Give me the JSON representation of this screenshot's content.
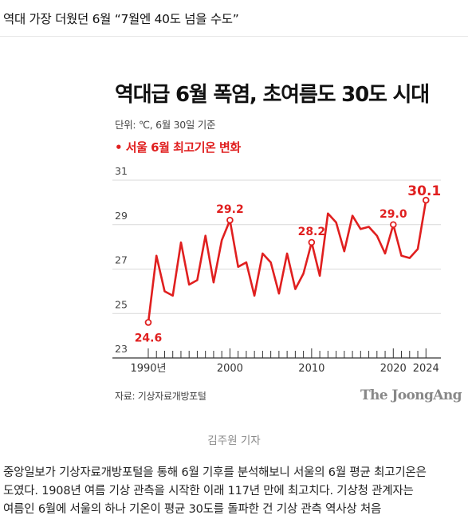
{
  "headline": "역대 가장 더웠던 6월 “7월엔 40도 넘을 수도”",
  "chart_data": {
    "type": "line",
    "title": "역대급 6월 폭염, 초여름도 30도 시대",
    "unit_note": "단위: ℃, 6월 30일 기준",
    "series_label": "• 서울 6월 최고기온 변화",
    "x_tick_labels": [
      "1990년",
      "2000",
      "2010",
      "2020",
      "2024"
    ],
    "x_ticks": [
      1990,
      2000,
      2010,
      2020,
      2024
    ],
    "ylim": [
      23,
      31
    ],
    "y_ticks": [
      23,
      25,
      27,
      29,
      31
    ],
    "grid": "horizontal",
    "color": "#e01f1f",
    "series": [
      {
        "x": [
          1990,
          1991,
          1992,
          1993,
          1994,
          1995,
          1996,
          1997,
          1998,
          1999,
          2000,
          2001,
          2002,
          2003,
          2004,
          2005,
          2006,
          2007,
          2008,
          2009,
          2010,
          2011,
          2012,
          2013,
          2014,
          2015,
          2016,
          2017,
          2018,
          2019,
          2020,
          2021,
          2022,
          2023,
          2024
        ],
        "y": [
          24.6,
          27.6,
          26.0,
          25.8,
          28.2,
          26.3,
          26.5,
          28.5,
          26.4,
          28.3,
          29.2,
          27.1,
          27.3,
          25.8,
          27.7,
          27.3,
          25.9,
          27.7,
          26.1,
          26.8,
          28.2,
          26.7,
          29.5,
          29.1,
          27.8,
          29.4,
          28.8,
          28.9,
          28.5,
          27.7,
          29.0,
          27.6,
          27.5,
          27.9,
          30.1
        ]
      }
    ],
    "annotations": [
      {
        "x": 1990,
        "y": 24.6,
        "label": "24.6"
      },
      {
        "x": 2000,
        "y": 29.2,
        "label": "29.2"
      },
      {
        "x": 2010,
        "y": 28.2,
        "label": "28.2"
      },
      {
        "x": 2020,
        "y": 29.0,
        "label": "29.0"
      },
      {
        "x": 2024,
        "y": 30.1,
        "label": "30.1"
      }
    ],
    "source": "자료: 기상자료개방포털",
    "brand": "The JoongAng"
  },
  "caption": "김주원 기자",
  "article_lines": [
    "중앙일보가 기상자료개방포털을 통해 6월 기후를 분석해보니 서울의 6월 평균 최고기온은",
    "도였다. 1908년 여름 기상 관측을 시작한 이래 117년 만에 최고치다. 기상청 관계자는",
    "여름인 6월에 서울의 하나 기온이 평균 30도를 돌파한 건 기상 관측 역사상 처음"
  ]
}
